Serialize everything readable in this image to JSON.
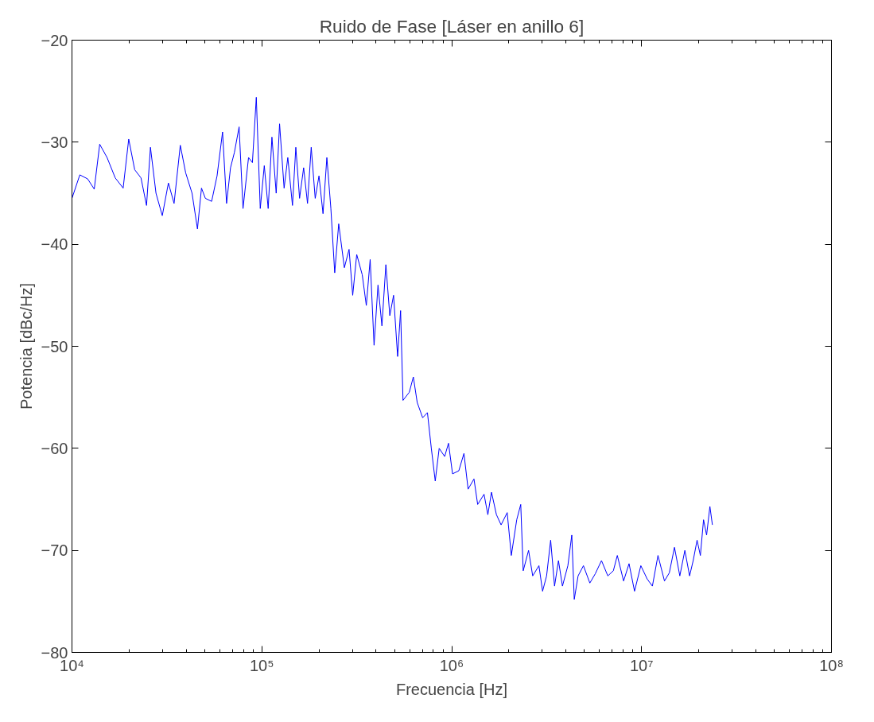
{
  "chart_data": {
    "type": "line",
    "title": "Ruido de Fase [Láser en anillo 6]",
    "xlabel": "Frecuencia [Hz]",
    "ylabel": "Potencia [dBc/Hz]",
    "log": "x",
    "grid": false,
    "marker": "none",
    "line_style": "solid",
    "xlim": [
      10000,
      100000000
    ],
    "ylim": [
      -80,
      -20
    ],
    "xticks": [
      {
        "value": 10000,
        "label": "10⁴"
      },
      {
        "value": 100000,
        "label": "10⁵"
      },
      {
        "value": 1000000,
        "label": "10⁶"
      },
      {
        "value": 10000000,
        "label": "10⁷"
      },
      {
        "value": 100000000,
        "label": "10⁸"
      }
    ],
    "yticks": [
      -80,
      -70,
      -60,
      -50,
      -40,
      -30,
      -20
    ],
    "series": [
      {
        "color": "#0000ff",
        "x": [
          10000,
          11000,
          12100,
          13100,
          14000,
          15300,
          16900,
          18600,
          19900,
          21400,
          23100,
          24700,
          25900,
          27700,
          29900,
          32200,
          34500,
          37200,
          39700,
          42900,
          45800,
          48100,
          50400,
          54400,
          58100,
          62100,
          65200,
          68400,
          71700,
          75900,
          79600,
          85100,
          89200,
          93500,
          98100,
          103000,
          108000,
          113000,
          119000,
          124000,
          131000,
          137000,
          145000,
          151000,
          158000,
          166000,
          174000,
          182000,
          191000,
          200000,
          210000,
          220000,
          231000,
          242000,
          254000,
          272000,
          288000,
          301000,
          316000,
          338000,
          355000,
          372000,
          390000,
          409000,
          429000,
          450000,
          472000,
          494000,
          519000,
          538000,
          554000,
          598000,
          628000,
          658000,
          703000,
          745000,
          781000,
          819000,
          859000,
          918000,
          962000,
          1010000,
          1090000,
          1160000,
          1220000,
          1310000,
          1370000,
          1480000,
          1550000,
          1620000,
          1720000,
          1820000,
          1960000,
          2060000,
          2200000,
          2310000,
          2380000,
          2540000,
          2670000,
          2880000,
          3010000,
          3160000,
          3320000,
          3480000,
          3650000,
          3830000,
          4090000,
          4290000,
          4420000,
          4630000,
          4940000,
          5340000,
          5700000,
          6150000,
          6640000,
          7100000,
          7450000,
          8040000,
          8590000,
          9180000,
          9910000,
          10700000,
          11400000,
          12200000,
          13200000,
          14000000,
          14900000,
          15900000,
          16900000,
          17900000,
          18700000,
          19600000,
          20400000,
          21200000,
          22000000,
          22900000,
          23600000
        ],
        "values": [
          -35.5,
          -33.2,
          -33.6,
          -34.6,
          -30.2,
          -31.5,
          -33.5,
          -34.5,
          -29.7,
          -32.7,
          -33.5,
          -36.2,
          -30.5,
          -35,
          -37.2,
          -34,
          -36,
          -30.3,
          -33,
          -35,
          -38.5,
          -34.5,
          -35.5,
          -35.8,
          -33.3,
          -29,
          -36,
          -32.5,
          -31,
          -28.5,
          -36.5,
          -31.5,
          -32,
          -25.6,
          -36.5,
          -32.3,
          -36.5,
          -29.5,
          -35,
          -28.2,
          -34.5,
          -31.5,
          -36.2,
          -30.5,
          -35.5,
          -32.5,
          -36,
          -30.5,
          -35.5,
          -33.3,
          -37,
          -31.5,
          -36.5,
          -42.8,
          -38,
          -42.3,
          -40.5,
          -45,
          -41,
          -43,
          -46,
          -41.5,
          -49.9,
          -44,
          -48,
          -42,
          -47,
          -45,
          -51,
          -46.5,
          -55.3,
          -54.5,
          -53,
          -55.5,
          -57,
          -56.5,
          -60,
          -63.2,
          -60,
          -60.8,
          -59.5,
          -62.5,
          -62.2,
          -60.5,
          -64,
          -63,
          -65.5,
          -64.5,
          -66.5,
          -64.3,
          -66.5,
          -67.5,
          -66.3,
          -70.5,
          -67,
          -65.5,
          -72,
          -70,
          -72.5,
          -71.5,
          -74,
          -72.5,
          -69,
          -73.5,
          -71,
          -73.5,
          -71.5,
          -68.5,
          -74.8,
          -72.5,
          -71.5,
          -73.2,
          -72.3,
          -71,
          -72.5,
          -72,
          -70.5,
          -73,
          -71.3,
          -74,
          -71.5,
          -72.8,
          -73.5,
          -70.5,
          -73,
          -72.2,
          -69.7,
          -72.5,
          -70,
          -72.5,
          -71,
          -69,
          -70.5,
          -67,
          -68.5,
          -65.7,
          -67.5
        ]
      }
    ]
  }
}
